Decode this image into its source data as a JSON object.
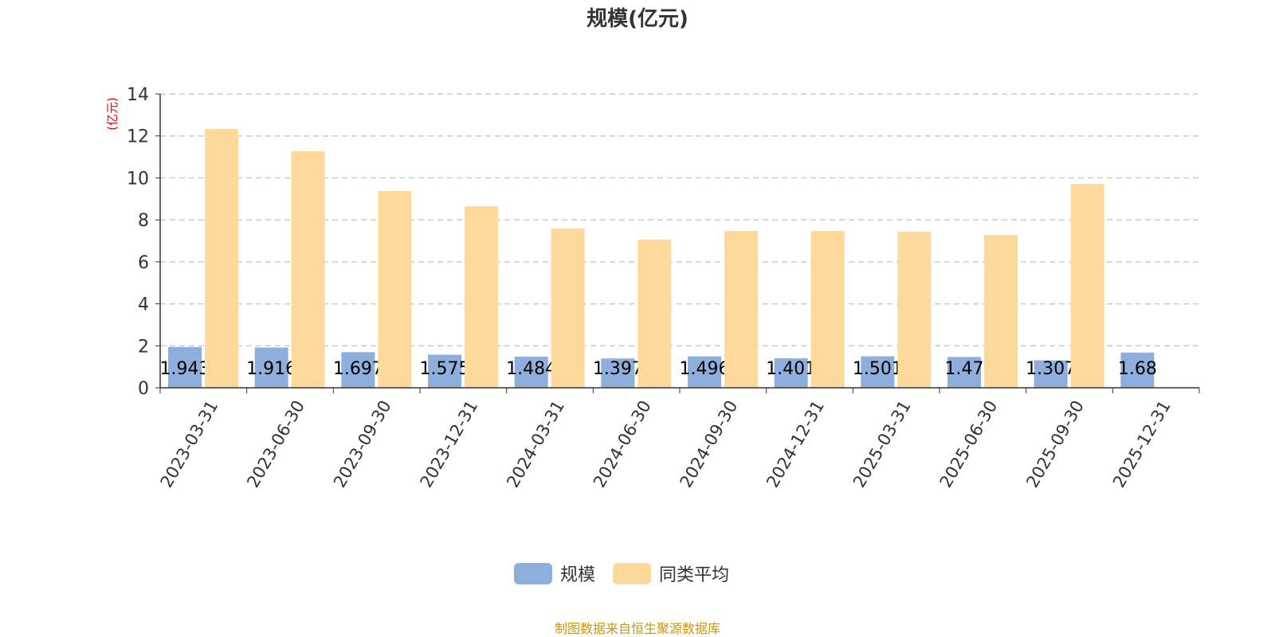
{
  "chart_data": {
    "type": "bar",
    "title": "规模(亿元)",
    "ylabel": "(亿元)",
    "xlabel": "",
    "ylim": [
      0,
      14
    ],
    "yticks": [
      0,
      2,
      4,
      6,
      8,
      10,
      12,
      14
    ],
    "grid": true,
    "legend_position": "bottom",
    "categories": [
      "2023-03-31",
      "2023-06-30",
      "2023-09-30",
      "2023-12-31",
      "2024-03-31",
      "2024-06-30",
      "2024-09-30",
      "2024-12-31",
      "2025-03-31",
      "2025-06-30",
      "2025-09-30",
      "2025-12-31"
    ],
    "series": [
      {
        "name": "规模",
        "color": "#8eaedb",
        "labels": true,
        "values": [
          1.943,
          1.916,
          1.697,
          1.575,
          1.484,
          1.397,
          1.496,
          1.401,
          1.501,
          1.47,
          1.307,
          1.68
        ]
      },
      {
        "name": "同类平均",
        "color": "#fdd99b",
        "labels": false,
        "values": [
          12.33,
          11.27,
          9.37,
          8.65,
          7.59,
          7.06,
          7.47,
          7.47,
          7.44,
          7.28,
          9.71,
          null
        ]
      }
    ]
  },
  "footer": "制图数据来自恒生聚源数据库"
}
